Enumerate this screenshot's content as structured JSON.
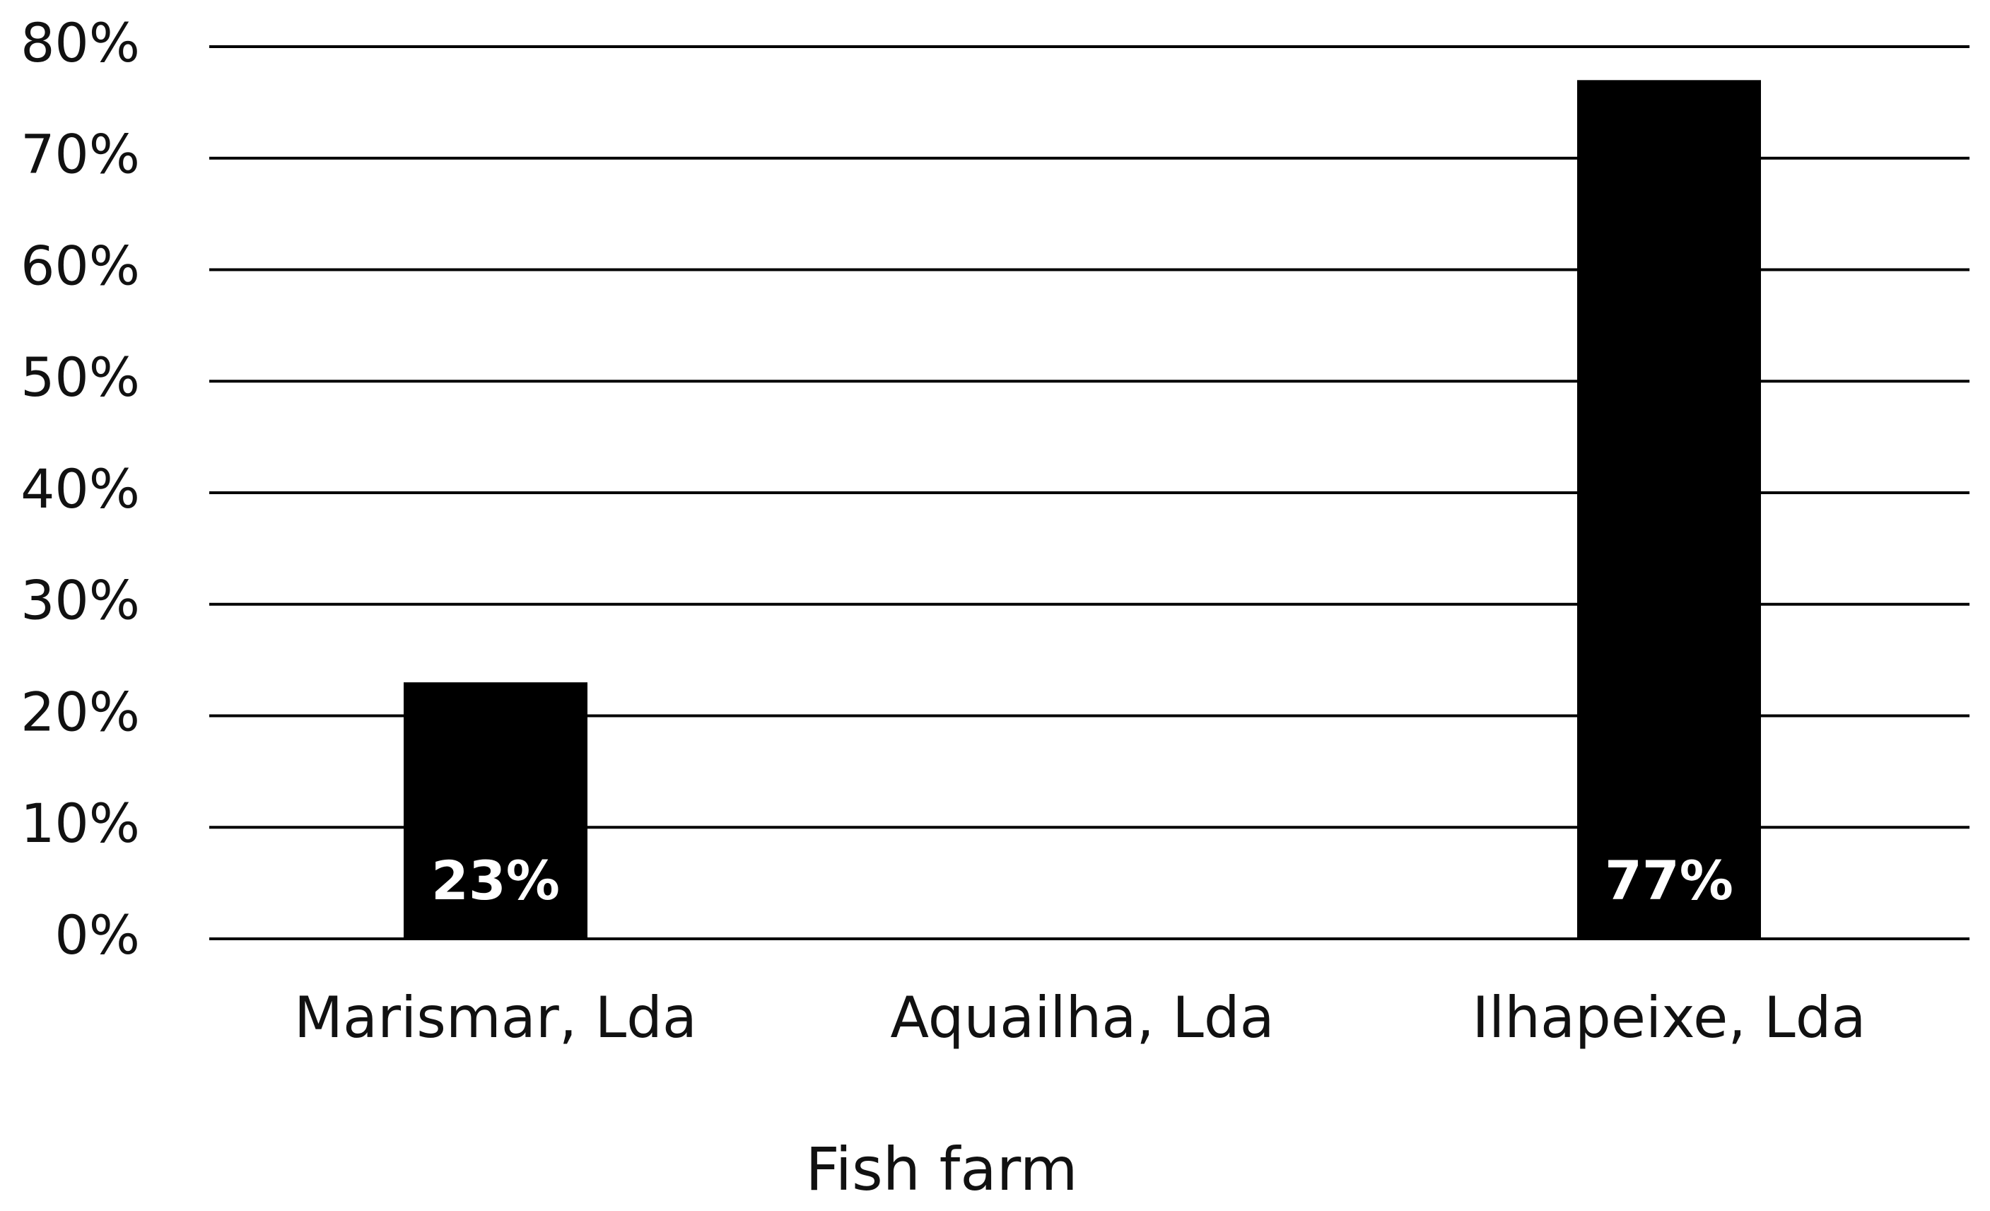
{
  "chart_data": {
    "type": "bar",
    "x_label": "Fish farm",
    "categories": [
      "Marismar, Lda",
      "Aquailha, Lda",
      "Ilhapeixe, Lda"
    ],
    "values": [
      23,
      0,
      77
    ],
    "value_labels": [
      "23%",
      null,
      "77%"
    ],
    "color": "#000000",
    "ylim": [
      0,
      80
    ],
    "yticks": [
      {
        "value": 0,
        "label": "0%"
      },
      {
        "value": 10,
        "label": "10%"
      },
      {
        "value": 20,
        "label": "20%"
      },
      {
        "value": 30,
        "label": "30%"
      },
      {
        "value": 40,
        "label": "40%"
      },
      {
        "value": 50,
        "label": "50%"
      },
      {
        "value": 60,
        "label": "60%"
      },
      {
        "value": 70,
        "label": "70%"
      },
      {
        "value": 80,
        "label": "80%"
      }
    ],
    "grid": true
  }
}
